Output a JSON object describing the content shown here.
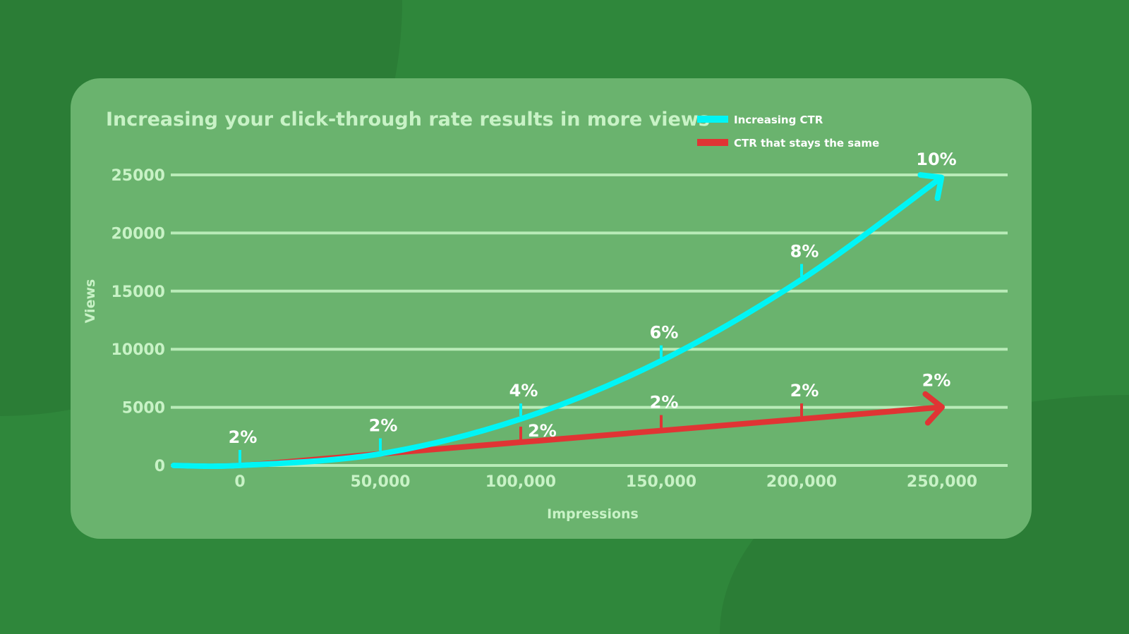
{
  "colors": {
    "background": "#2f873b",
    "card": "#6ab36e",
    "grid": "#b9ebb8",
    "label": "#c8f2c6",
    "increasing": "#00f5f5",
    "same": "#e03434",
    "annotation": "#ffffff"
  },
  "chart_data": {
    "type": "line",
    "title": "Increasing your click-through rate results in more views",
    "xlabel": "Impressions",
    "ylabel": "Views",
    "x_ticks": [
      "0",
      "50,000",
      "100,000",
      "150,000",
      "200,000",
      "250,000"
    ],
    "x_tick_values": [
      0,
      50000,
      100000,
      150000,
      200000,
      250000
    ],
    "y_ticks": [
      "0",
      "5000",
      "10000",
      "15000",
      "20000",
      "25000"
    ],
    "y_tick_values": [
      0,
      5000,
      10000,
      15000,
      20000,
      25000
    ],
    "xlim": [
      -24000,
      272000
    ],
    "ylim": [
      0,
      25000
    ],
    "grid": true,
    "legend_position": "top-right",
    "series": [
      {
        "name": "Increasing CTR",
        "color": "#00f5f5",
        "x": [
          0,
          50000,
          100000,
          150000,
          200000,
          250000
        ],
        "y": [
          0,
          1000,
          4000,
          9000,
          16000,
          25000
        ],
        "annotations": [
          "2%",
          "2%",
          "4%",
          "6%",
          "8%",
          "10%"
        ]
      },
      {
        "name": "CTR that stays the same",
        "color": "#e03434",
        "x": [
          0,
          50000,
          100000,
          150000,
          200000,
          250000
        ],
        "y": [
          0,
          1000,
          2000,
          3000,
          4000,
          5000
        ],
        "annotations": [
          null,
          null,
          "2%",
          "2%",
          "2%",
          "2%"
        ]
      }
    ]
  }
}
